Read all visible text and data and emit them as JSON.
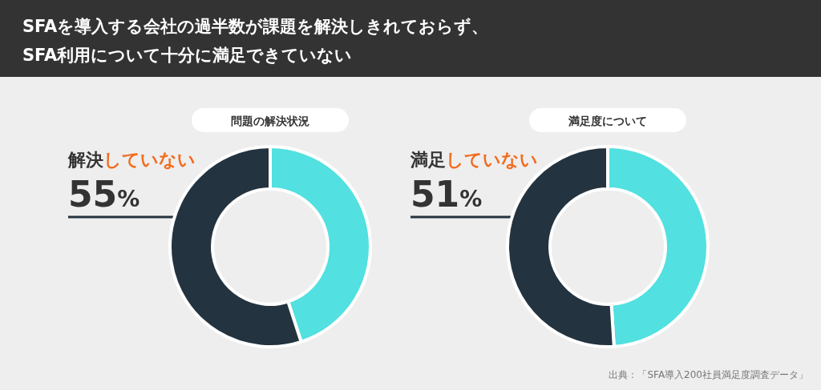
{
  "chart_data": [
    {
      "type": "donut",
      "title": "SFAを導入する会社の過半数が課題を解決しきれておらず、\nSFA利用について十分に満足できていない",
      "subtitle": "問題の解決状況",
      "categories": [
        null,
        "解決していない"
      ],
      "values": [
        45,
        55
      ],
      "colors": [
        "#52e0e0",
        "#23333f"
      ],
      "value_labels": [
        null,
        "55%"
      ]
    },
    {
      "type": "donut",
      "subtitle": "満足度について",
      "categories": [
        null,
        "満足していない"
      ],
      "values": [
        49,
        51
      ],
      "colors": [
        "#52e0e0",
        "#23333f"
      ],
      "value_labels": [
        null,
        "51%"
      ],
      "annotations": [
        "出典：「SFA導入200社員満足度調査データ」"
      ]
    }
  ]
}
